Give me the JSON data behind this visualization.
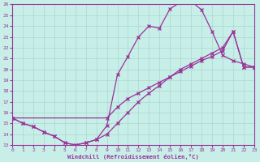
{
  "bg_color": "#c8eee8",
  "grid_color": "#a8d8d0",
  "line_color": "#993399",
  "xlabel": "Windchill (Refroidissement éolien,°C)",
  "xlim": [
    0,
    23
  ],
  "ylim": [
    13,
    26
  ],
  "xticks": [
    0,
    1,
    2,
    3,
    4,
    5,
    6,
    7,
    8,
    9,
    10,
    11,
    12,
    13,
    14,
    15,
    16,
    17,
    18,
    19,
    20,
    21,
    22,
    23
  ],
  "yticks": [
    13,
    14,
    15,
    16,
    17,
    18,
    19,
    20,
    21,
    22,
    23,
    24,
    25,
    26
  ],
  "curve_upper": {
    "x": [
      0,
      1,
      2,
      3,
      4,
      5,
      6,
      7,
      8,
      9,
      10,
      11,
      12,
      13,
      14,
      15,
      16,
      17,
      18,
      19,
      20,
      21,
      22,
      23
    ],
    "y": [
      15.5,
      15.0,
      14.7,
      14.2,
      13.8,
      13.2,
      13.0,
      13.2,
      13.5,
      14.8,
      19.5,
      21.2,
      23.0,
      24.0,
      23.8,
      25.6,
      26.2,
      26.3,
      25.5,
      23.5,
      21.3,
      20.8,
      20.5,
      20.2
    ]
  },
  "curve_middle": {
    "x": [
      0,
      9,
      10,
      11,
      12,
      13,
      14,
      15,
      16,
      17,
      18,
      19,
      20,
      21,
      22,
      23
    ],
    "y": [
      15.5,
      15.5,
      16.5,
      17.3,
      17.8,
      18.3,
      18.8,
      19.3,
      19.8,
      20.3,
      20.8,
      21.2,
      21.7,
      23.5,
      20.2,
      20.2
    ]
  },
  "curve_lower": {
    "x": [
      0,
      1,
      2,
      3,
      4,
      5,
      6,
      7,
      8,
      9,
      10,
      11,
      12,
      13,
      14,
      15,
      16,
      17,
      18,
      19,
      20,
      21,
      22,
      23
    ],
    "y": [
      15.5,
      15.0,
      14.7,
      14.2,
      13.8,
      13.2,
      13.0,
      13.2,
      13.5,
      14.0,
      15.0,
      16.0,
      17.0,
      17.8,
      18.5,
      19.3,
      20.0,
      20.5,
      21.0,
      21.5,
      22.0,
      23.5,
      20.2,
      20.2
    ]
  }
}
